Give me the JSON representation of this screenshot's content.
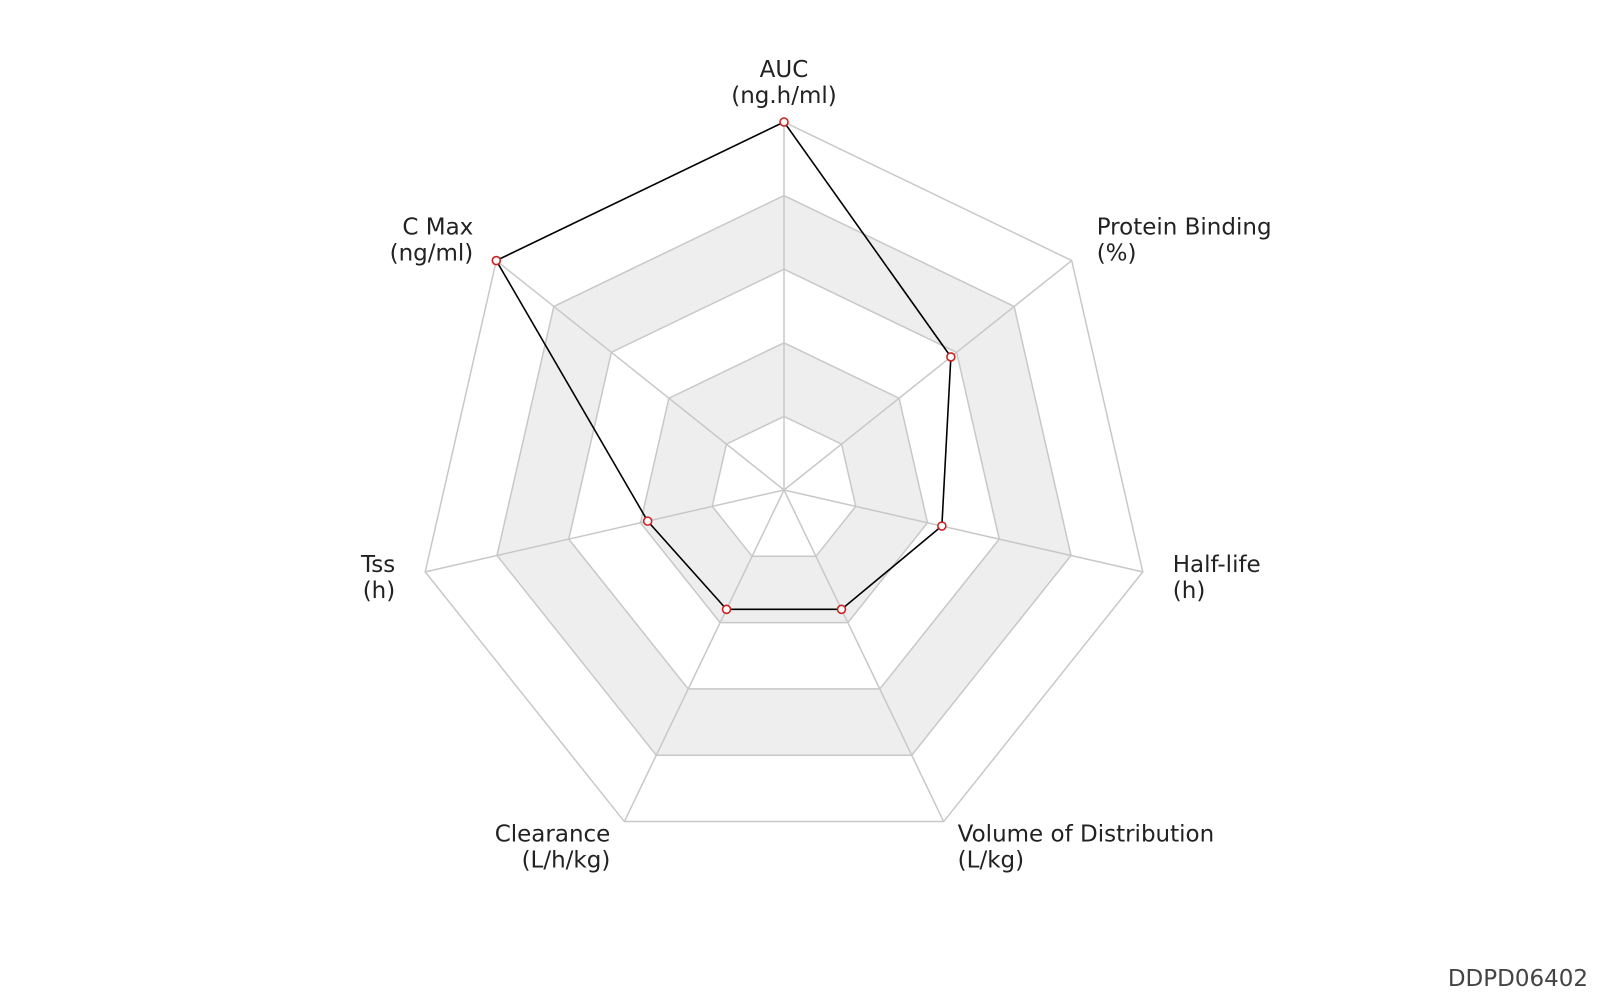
{
  "chart_data": {
    "type": "radar",
    "axes": [
      {
        "name": "AUC",
        "unit": "(ng.h/ml)"
      },
      {
        "name": "Protein Binding",
        "unit": "(%)"
      },
      {
        "name": "Half-life",
        "unit": "(h)"
      },
      {
        "name": "Volume of Distribution",
        "unit": "(L/kg)"
      },
      {
        "name": "Clearance",
        "unit": "(L/h/kg)"
      },
      {
        "name": "Tss",
        "unit": "(h)"
      },
      {
        "name": "C Max",
        "unit": "(ng/ml)"
      }
    ],
    "levels": 5,
    "range": [
      0,
      1
    ],
    "values": [
      1.0,
      0.58,
      0.44,
      0.36,
      0.36,
      0.38,
      1.0
    ],
    "band_colors": [
      "#ffffff",
      "#eeeeee"
    ],
    "grid_color": "#c8c8c8",
    "line_color": "#000000",
    "marker_color": "#cc2222"
  },
  "watermark": "DDPD06402"
}
